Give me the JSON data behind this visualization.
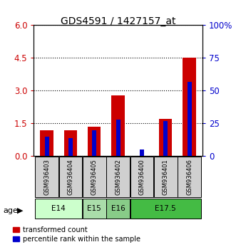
{
  "title": "GDS4591 / 1427157_at",
  "samples": [
    "GSM936403",
    "GSM936404",
    "GSM936405",
    "GSM936402",
    "GSM936400",
    "GSM936401",
    "GSM936406"
  ],
  "red_values": [
    1.2,
    1.2,
    1.35,
    2.8,
    0.02,
    1.72,
    4.5
  ],
  "blue_values": [
    15,
    14,
    20,
    28,
    5,
    27,
    57
  ],
  "age_groups": [
    {
      "label": "E14",
      "samples": [
        "GSM936403",
        "GSM936404"
      ],
      "color": "#ccffcc"
    },
    {
      "label": "E15",
      "samples": [
        "GSM936405"
      ],
      "color": "#aaddaa"
    },
    {
      "label": "E16",
      "samples": [
        "GSM936402"
      ],
      "color": "#88cc88"
    },
    {
      "label": "E17.5",
      "samples": [
        "GSM936400",
        "GSM936401",
        "GSM936406"
      ],
      "color": "#44bb44"
    }
  ],
  "left_ylim": [
    0,
    6
  ],
  "right_ylim": [
    0,
    100
  ],
  "left_yticks": [
    0,
    1.5,
    3,
    4.5,
    6
  ],
  "right_yticks": [
    0,
    25,
    50,
    75,
    100
  ],
  "red_color": "#cc0000",
  "blue_color": "#0000cc",
  "red_bar_width": 0.55,
  "blue_bar_width": 0.18,
  "legend_red": "transformed count",
  "legend_blue": "percentile rank within the sample",
  "age_label": "age",
  "sample_box_color": "#d0d0d0",
  "title_fontsize": 10,
  "tick_fontsize": 8.5
}
